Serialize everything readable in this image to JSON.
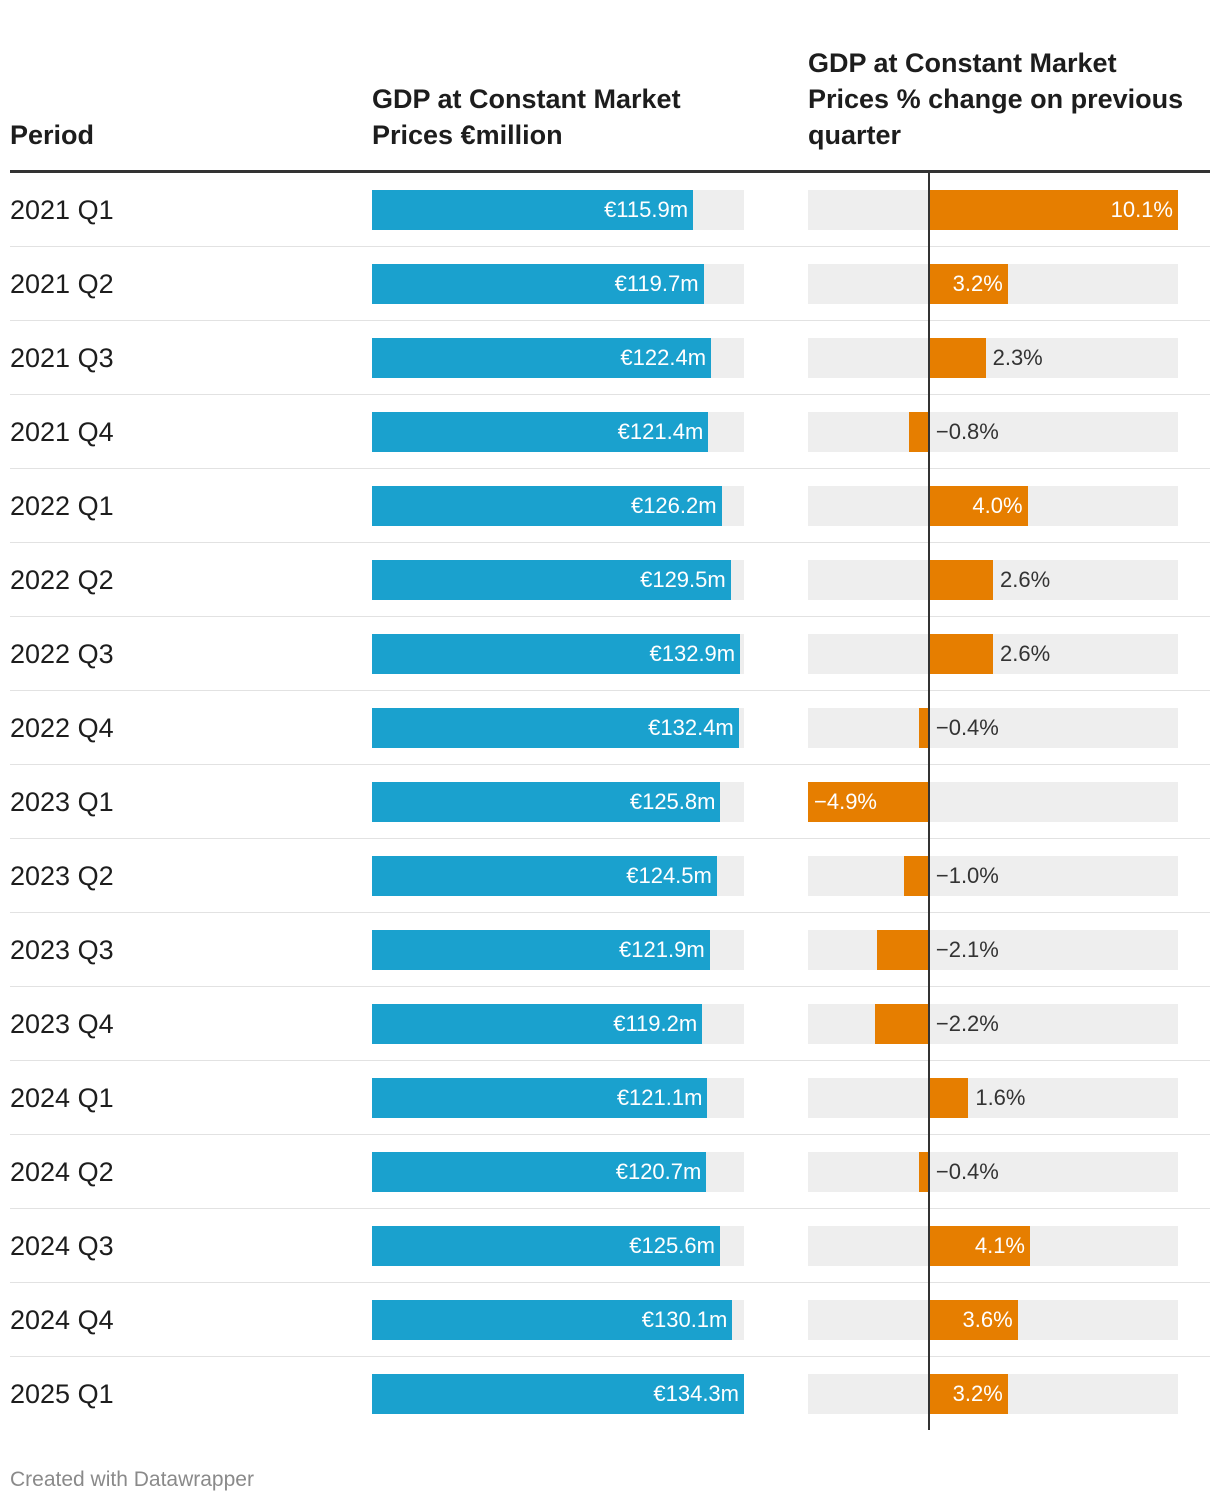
{
  "headers": {
    "period": "Period",
    "gdp": "GDP at Constant Market Prices €million",
    "pct": "GDP at Constant Market Prices % change on previous quarter"
  },
  "colors": {
    "gdp_bar": "#1aa1ce",
    "pct_bar": "#e67e00",
    "track": "#eeeeee"
  },
  "footer": "Created with Datawrapper",
  "chart_data": {
    "type": "table",
    "title": "",
    "columns": [
      "Period",
      "GDP at Constant Market Prices €million",
      "GDP at Constant Market Prices % change on previous quarter"
    ],
    "gdp_range": [
      0,
      134.3
    ],
    "pct_range": [
      -4.9,
      10.1
    ],
    "rows": [
      {
        "period": "2021 Q1",
        "gdp": 115.9,
        "gdp_label": "€115.9m",
        "pct": 10.1,
        "pct_label": "10.1%"
      },
      {
        "period": "2021 Q2",
        "gdp": 119.7,
        "gdp_label": "€119.7m",
        "pct": 3.2,
        "pct_label": "3.2%"
      },
      {
        "period": "2021 Q3",
        "gdp": 122.4,
        "gdp_label": "€122.4m",
        "pct": 2.3,
        "pct_label": "2.3%"
      },
      {
        "period": "2021 Q4",
        "gdp": 121.4,
        "gdp_label": "€121.4m",
        "pct": -0.8,
        "pct_label": "−0.8%"
      },
      {
        "period": "2022 Q1",
        "gdp": 126.2,
        "gdp_label": "€126.2m",
        "pct": 4.0,
        "pct_label": "4.0%"
      },
      {
        "period": "2022 Q2",
        "gdp": 129.5,
        "gdp_label": "€129.5m",
        "pct": 2.6,
        "pct_label": "2.6%"
      },
      {
        "period": "2022 Q3",
        "gdp": 132.9,
        "gdp_label": "€132.9m",
        "pct": 2.6,
        "pct_label": "2.6%"
      },
      {
        "period": "2022 Q4",
        "gdp": 132.4,
        "gdp_label": "€132.4m",
        "pct": -0.4,
        "pct_label": "−0.4%"
      },
      {
        "period": "2023 Q1",
        "gdp": 125.8,
        "gdp_label": "€125.8m",
        "pct": -4.9,
        "pct_label": "−4.9%"
      },
      {
        "period": "2023 Q2",
        "gdp": 124.5,
        "gdp_label": "€124.5m",
        "pct": -1.0,
        "pct_label": "−1.0%"
      },
      {
        "period": "2023 Q3",
        "gdp": 121.9,
        "gdp_label": "€121.9m",
        "pct": -2.1,
        "pct_label": "−2.1%"
      },
      {
        "period": "2023 Q4",
        "gdp": 119.2,
        "gdp_label": "€119.2m",
        "pct": -2.2,
        "pct_label": "−2.2%"
      },
      {
        "period": "2024 Q1",
        "gdp": 121.1,
        "gdp_label": "€121.1m",
        "pct": 1.6,
        "pct_label": "1.6%"
      },
      {
        "period": "2024 Q2",
        "gdp": 120.7,
        "gdp_label": "€120.7m",
        "pct": -0.4,
        "pct_label": "−0.4%"
      },
      {
        "period": "2024 Q3",
        "gdp": 125.6,
        "gdp_label": "€125.6m",
        "pct": 4.1,
        "pct_label": "4.1%"
      },
      {
        "period": "2024 Q4",
        "gdp": 130.1,
        "gdp_label": "€130.1m",
        "pct": 3.6,
        "pct_label": "3.6%"
      },
      {
        "period": "2025 Q1",
        "gdp": 134.3,
        "gdp_label": "€134.3m",
        "pct": 3.2,
        "pct_label": "3.2%"
      }
    ]
  }
}
